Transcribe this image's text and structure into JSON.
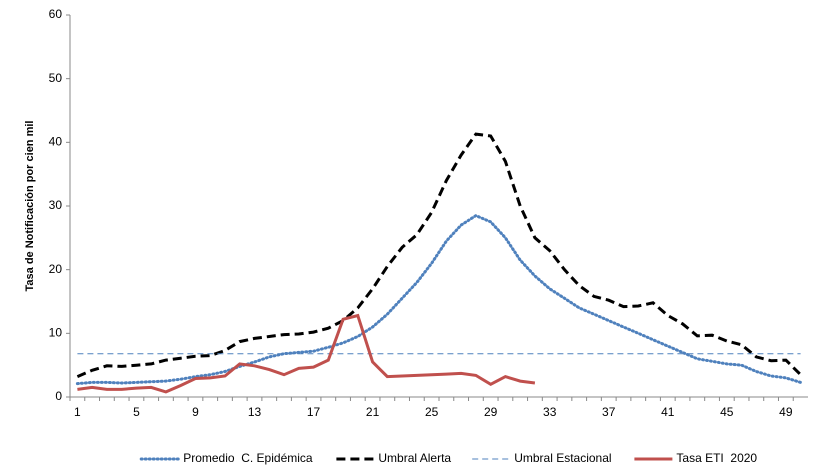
{
  "chart_data": {
    "type": "line",
    "y_label": "Tasa de Notificación por cien mil",
    "categories": [
      "1",
      null,
      null,
      null,
      "5",
      null,
      null,
      null,
      "9",
      null,
      null,
      null,
      "13",
      null,
      null,
      null,
      "17",
      null,
      null,
      null,
      "21",
      null,
      null,
      null,
      "25",
      null,
      null,
      null,
      "29",
      null,
      null,
      null,
      "33",
      null,
      null,
      null,
      "37",
      null,
      null,
      null,
      "41",
      null,
      null,
      null,
      "45",
      null,
      null,
      null,
      "49",
      null
    ],
    "series": [
      {
        "name": "Promedio  C. Epidémica",
        "color": "#4f81bd",
        "line_style": "dotted",
        "values": [
          2.1,
          2.3,
          2.3,
          2.2,
          2.3,
          2.4,
          2.5,
          2.8,
          3.2,
          3.5,
          4.0,
          4.8,
          5.5,
          6.3,
          6.8,
          7.0,
          7.2,
          7.8,
          8.5,
          9.5,
          11,
          13,
          15.5,
          18,
          21,
          24.5,
          27,
          28.5,
          27.5,
          25,
          21.5,
          19,
          17,
          15.5,
          14,
          13,
          12,
          11,
          10,
          9,
          8,
          7,
          6,
          5.6,
          5.2,
          5.0,
          4.0,
          3.3,
          3.0,
          2.3
        ]
      },
      {
        "name": "Umbral Alerta",
        "color": "#000000",
        "line_style": "dashed",
        "values": [
          3.2,
          4.2,
          4.9,
          4.8,
          5.0,
          5.2,
          5.8,
          6.1,
          6.4,
          6.5,
          7.3,
          8.7,
          9.2,
          9.5,
          9.8,
          9.9,
          10.2,
          10.8,
          12.0,
          14,
          17,
          20.5,
          23.5,
          25.5,
          29,
          34,
          38,
          41.3,
          41.0,
          37,
          30,
          25,
          23,
          20,
          17.5,
          15.8,
          15.2,
          14.2,
          14.3,
          14.8,
          12.8,
          11.5,
          9.6,
          9.7,
          8.8,
          8.2,
          6.3,
          5.7,
          5.8,
          3.5
        ]
      },
      {
        "name": "Umbral Estacional",
        "color": "#4f81bd",
        "line_style": "thin-dashed",
        "values": [
          6.8,
          6.8,
          6.8,
          6.8,
          6.8,
          6.8,
          6.8,
          6.8,
          6.8,
          6.8,
          6.8,
          6.8,
          6.8,
          6.8,
          6.8,
          6.8,
          6.8,
          6.8,
          6.8,
          6.8,
          6.8,
          6.8,
          6.8,
          6.8,
          6.8,
          6.8,
          6.8,
          6.8,
          6.8,
          6.8,
          6.8,
          6.8,
          6.8,
          6.8,
          6.8,
          6.8,
          6.8,
          6.8,
          6.8,
          6.8,
          6.8,
          6.8,
          6.8,
          6.8,
          6.8,
          6.8,
          6.8,
          6.8,
          6.8,
          6.8
        ]
      },
      {
        "name": "Tasa ETI  2020",
        "color": "#c0504d",
        "line_style": "solid",
        "values": [
          1.2,
          1.5,
          1.2,
          1.2,
          1.4,
          1.5,
          0.8,
          1.8,
          2.9,
          3.0,
          3.3,
          5.2,
          4.9,
          4.3,
          3.5,
          4.5,
          4.7,
          5.8,
          12.2,
          12.8,
          5.5,
          3.2,
          3.3,
          3.4,
          3.5,
          3.6,
          3.7,
          3.4,
          2.0,
          3.2,
          2.5,
          2.2,
          null,
          null,
          null,
          null,
          null,
          null,
          null,
          null,
          null,
          null,
          null,
          null,
          null,
          null,
          null,
          null,
          null,
          null
        ]
      }
    ],
    "ylim": [
      0,
      60
    ],
    "yticks": [
      0,
      10,
      20,
      30,
      40,
      50,
      60
    ],
    "grid": false,
    "legend": "bottom"
  }
}
